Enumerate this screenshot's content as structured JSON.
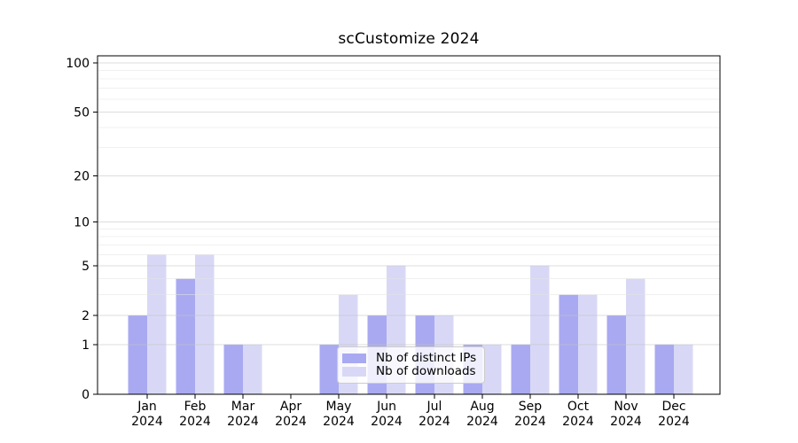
{
  "chart_data": {
    "type": "bar",
    "title": "scCustomize 2024",
    "categories": [
      "Jan",
      "Feb",
      "Mar",
      "Apr",
      "May",
      "Jun",
      "Jul",
      "Aug",
      "Sep",
      "Oct",
      "Nov",
      "Dec"
    ],
    "x_sub_label": "2024",
    "series": [
      {
        "name": "Nb of distinct IPs",
        "color": "#a9a9f1",
        "values": [
          2,
          4,
          1,
          0,
          1,
          2,
          2,
          1,
          1,
          3,
          2,
          1
        ]
      },
      {
        "name": "Nb of downloads",
        "color": "#d8d8f6",
        "values": [
          6,
          6,
          1,
          0,
          3,
          5,
          2,
          1,
          5,
          3,
          4,
          1
        ]
      }
    ],
    "xlabel": "",
    "ylabel": "",
    "y_scale": "log1p",
    "ylim": [
      0,
      110
    ],
    "y_ticks": [
      0,
      1,
      2,
      5,
      10,
      20,
      50,
      100
    ],
    "y_minor_gridlines": [
      3,
      4,
      6,
      7,
      8,
      9,
      30,
      40,
      60,
      70,
      80,
      90
    ],
    "grid": true,
    "legend_position": "lower center",
    "colors": {
      "major_grid": "#c2c2c2",
      "minor_grid": "#e4e4e4",
      "spine": "#000000",
      "text": "#000000",
      "legend_border": "#cccccc"
    }
  }
}
